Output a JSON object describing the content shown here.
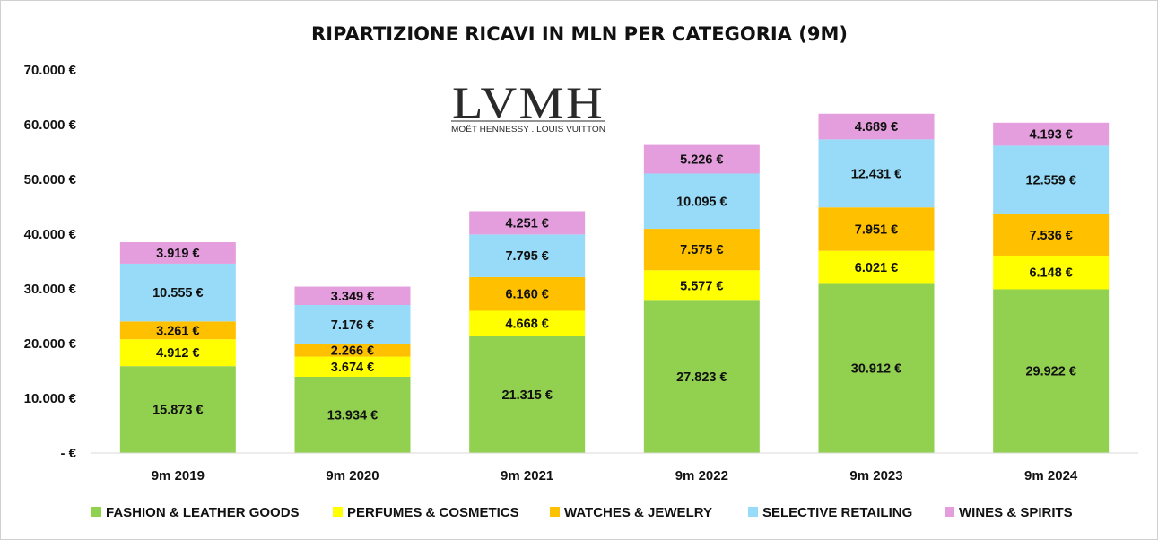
{
  "chart_data": {
    "type": "stacked-bar",
    "title": "RIPARTIZIONE RICAVI IN MLN PER CATEGORIA (9M)",
    "categories": [
      "9m 2019",
      "9m 2020",
      "9m 2021",
      "9m 2022",
      "9m 2023",
      "9m 2024"
    ],
    "series": [
      {
        "name": "FASHION & LEATHER GOODS",
        "color": "#92D050",
        "values": [
          15873,
          13934,
          21315,
          27823,
          30912,
          29922
        ],
        "labels": [
          "15.873 €",
          "13.934 €",
          "21.315 €",
          "27.823 €",
          "30.912 €",
          "29.922 €"
        ]
      },
      {
        "name": "PERFUMES & COSMETICS",
        "color": "#FFFF00",
        "values": [
          4912,
          3674,
          4668,
          5577,
          6021,
          6148
        ],
        "labels": [
          "4.912 €",
          "3.674 €",
          "4.668 €",
          "5.577 €",
          "6.021 €",
          "6.148 €"
        ]
      },
      {
        "name": "WATCHES & JEWELRY",
        "color": "#FFC000",
        "values": [
          3261,
          2266,
          6160,
          7575,
          7951,
          7536
        ],
        "labels": [
          "3.261 €",
          "2.266 €",
          "6.160 €",
          "7.575 €",
          "7.951 €",
          "7.536 €"
        ]
      },
      {
        "name": "SELECTIVE RETAILING",
        "color": "#97DBF8",
        "values": [
          10555,
          7176,
          7795,
          10095,
          12431,
          12559
        ],
        "labels": [
          "10.555 €",
          "7.176 €",
          "7.795 €",
          "10.095 €",
          "12.431 €",
          "12.559 €"
        ]
      },
      {
        "name": "WINES & SPIRITS",
        "color": "#E49EDD",
        "values": [
          3919,
          3349,
          4251,
          5226,
          4689,
          4193
        ],
        "labels": [
          "3.919 €",
          "3.349 €",
          "4.251 €",
          "5.226 €",
          "4.689 €",
          "4.193 €"
        ]
      }
    ],
    "ylim": [
      0,
      70000
    ],
    "yticks": [
      0,
      10000,
      20000,
      30000,
      40000,
      50000,
      60000,
      70000
    ],
    "ytick_labels": [
      "-  €",
      "10.000 €",
      "20.000 €",
      "30.000 €",
      "40.000 €",
      "50.000 €",
      "60.000 €",
      "70.000 €"
    ],
    "gridlines": false,
    "legend_position": "bottom",
    "xlabel": "",
    "ylabel": ""
  },
  "logo": {
    "main_text": "LVMH",
    "sub_text": "MOËT HENNESSY . LOUIS VUITTON"
  }
}
